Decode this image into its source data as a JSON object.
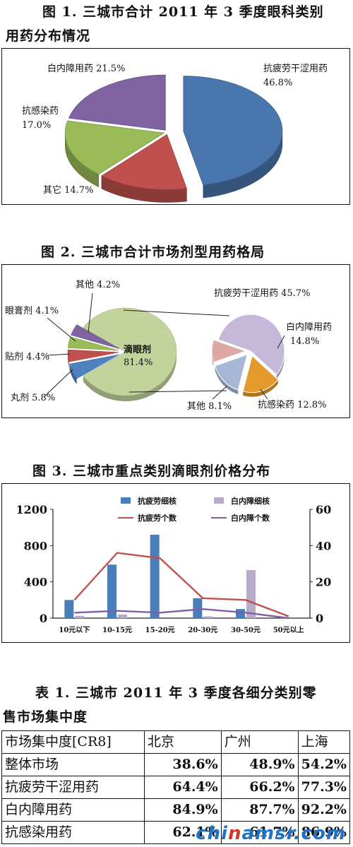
{
  "fig1": {
    "title_line1": "图 1. 三城市合计 2011 年 3 季度眼科类别",
    "title_line2": "用药分布情况"
  },
  "fig2": {
    "title": "图 2. 三城市合计市场剂型用药格局"
  },
  "fig3": {
    "title": "图 3. 三城市重点类别滴眼剂价格分布"
  },
  "table1": {
    "title_line1": "表 1. 三城市 2011 年 3 季度各细分类别零",
    "title_line2": "售市场集中度",
    "header": [
      "市场集中度[CR8]",
      "北京",
      "广州",
      "上海"
    ],
    "rows": [
      [
        "整体市场",
        "38.6%",
        "48.9%",
        "54.2%"
      ],
      [
        "抗疲劳干涩用药",
        "64.4%",
        "66.2%",
        "77.3%"
      ],
      [
        "白内障用药",
        "84.9%",
        "87.7%",
        "92.2%"
      ],
      [
        "抗感染用药",
        "62.1%",
        "61.7%",
        "86.9%"
      ]
    ]
  },
  "watermark": {
    "prefix": "chi",
    "highlight": "n",
    "suffix": "amsr.com"
  },
  "chart_data": [
    {
      "type": "pie",
      "title": "图 1. 三城市合计 2011 年 3 季度眼科类别用药分布情况",
      "labels": [
        "抗疲劳干涩用药",
        "其它",
        "抗感染药",
        "白内障用药"
      ],
      "values": [
        46.8,
        14.7,
        17.0,
        21.5
      ],
      "value_labels": [
        "46.8%",
        "14.7%",
        "17.0%",
        "21.5%"
      ],
      "colors": [
        "#4a76ae",
        "#c0504d",
        "#9bbb59",
        "#8064a2"
      ]
    },
    {
      "type": "pie",
      "title": "图 2. 三城市合计市场剂型用药格局",
      "labels": [
        "滴眼剂",
        "丸剂",
        "贴剂",
        "眼膏剂",
        "其他"
      ],
      "values": [
        81.4,
        5.8,
        4.4,
        4.1,
        4.2
      ],
      "value_labels": [
        "81.4%",
        "5.8%",
        "4.4%",
        "4.1%",
        "4.2%"
      ],
      "colors": [
        "#c3d39c",
        "#4f81bd",
        "#c0504d",
        "#9bbb59",
        "#8064a2"
      ],
      "breakdown_of": "滴眼剂",
      "breakdown": {
        "labels": [
          "抗疲劳干涩用药",
          "白内障用药",
          "抗感染药",
          "其他"
        ],
        "values": [
          45.7,
          14.8,
          12.8,
          8.1
        ],
        "value_labels": [
          "45.7%",
          "14.8%",
          "12.8%",
          "8.1%"
        ],
        "colors": [
          "#c5b8d8",
          "#e49a2a",
          "#a6b8d6",
          "#dda7a4"
        ]
      }
    },
    {
      "type": "bar",
      "title": "图 3. 三城市重点类别滴眼剂价格分布",
      "categories": [
        "10元以下",
        "10-15元",
        "15-20元",
        "20-30元",
        "30-50元",
        "50元以上"
      ],
      "left_axis": {
        "min": 0,
        "max": 1200,
        "ticks": [
          0,
          400,
          800,
          1200
        ]
      },
      "right_axis": {
        "min": 0,
        "max": 60,
        "ticks": [
          0,
          20,
          40,
          60
        ]
      },
      "series": [
        {
          "name": "抗疲劳细核",
          "kind": "bar",
          "axis": "left",
          "color": "#4a7ebb",
          "values": [
            200,
            590,
            920,
            220,
            100,
            0
          ]
        },
        {
          "name": "白内障细核",
          "kind": "bar",
          "axis": "left",
          "color": "#b7aacb",
          "values": [
            25,
            40,
            0,
            20,
            530,
            0
          ]
        },
        {
          "name": "抗疲劳个数",
          "kind": "line",
          "axis": "right",
          "color": "#c0504d",
          "values": [
            10,
            36,
            33,
            11,
            10,
            1
          ]
        },
        {
          "name": "白内障个数",
          "kind": "line",
          "axis": "right",
          "color": "#7f5fa8",
          "values": [
            3,
            4,
            3,
            5,
            3,
            0
          ]
        }
      ],
      "legend_position": "top"
    }
  ]
}
